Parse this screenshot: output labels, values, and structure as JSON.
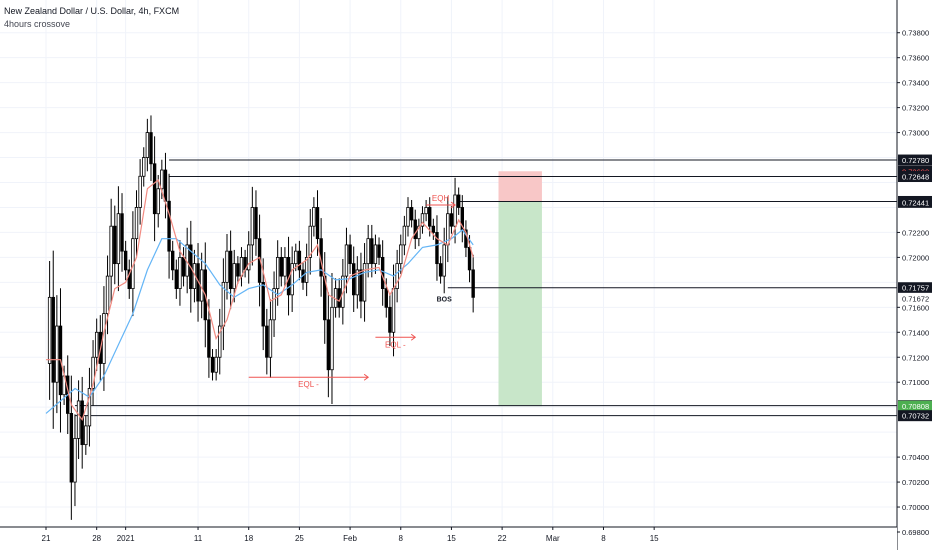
{
  "header": {
    "title": "New Zealand Dollar / U.S. Dollar, 4h, FXCM",
    "subtitle": "4hours crossove"
  },
  "chart_data": {
    "type": "candlestick",
    "ylim": [
      0.698,
      0.7395
    ],
    "y_ticks": [
      "0.73800",
      "0.73600",
      "0.73400",
      "0.73200",
      "0.73000",
      "0.72200",
      "0.72000",
      "0.71600",
      "0.71400",
      "0.71200",
      "0.71000",
      "0.70400",
      "0.70200",
      "0.70000",
      "0.69800"
    ],
    "x_ticks": [
      {
        "label": "21",
        "day": 0
      },
      {
        "label": "28",
        "day": 7
      },
      {
        "label": "2021",
        "day": 11
      },
      {
        "label": "11",
        "day": 21
      },
      {
        "label": "18",
        "day": 28
      },
      {
        "label": "25",
        "day": 35
      },
      {
        "label": "Feb",
        "day": 42
      },
      {
        "label": "8",
        "day": 49
      },
      {
        "label": "15",
        "day": 56
      },
      {
        "label": "22",
        "day": 63
      },
      {
        "label": "Mar",
        "day": 70
      },
      {
        "label": "8",
        "day": 77
      },
      {
        "label": "15",
        "day": 84
      }
    ],
    "series_close": [
      {
        "day": 0,
        "price": 0.7115
      },
      {
        "day": 0.5,
        "price": 0.7168
      },
      {
        "day": 1,
        "price": 0.71
      },
      {
        "day": 1.5,
        "price": 0.7145
      },
      {
        "day": 2,
        "price": 0.709
      },
      {
        "day": 2.5,
        "price": 0.7105
      },
      {
        "day": 3,
        "price": 0.7075
      },
      {
        "day": 3.5,
        "price": 0.702
      },
      {
        "day": 4,
        "price": 0.7055
      },
      {
        "day": 4.5,
        "price": 0.7085
      },
      {
        "day": 5,
        "price": 0.705
      },
      {
        "day": 5.5,
        "price": 0.7065
      },
      {
        "day": 6,
        "price": 0.7095
      },
      {
        "day": 6.5,
        "price": 0.712
      },
      {
        "day": 7,
        "price": 0.714
      },
      {
        "day": 7.5,
        "price": 0.7115
      },
      {
        "day": 8,
        "price": 0.7155
      },
      {
        "day": 8.5,
        "price": 0.7185
      },
      {
        "day": 9,
        "price": 0.7225
      },
      {
        "day": 9.5,
        "price": 0.7195
      },
      {
        "day": 10,
        "price": 0.7235
      },
      {
        "day": 10.5,
        "price": 0.7205
      },
      {
        "day": 11,
        "price": 0.719
      },
      {
        "day": 11.5,
        "price": 0.7175
      },
      {
        "day": 12,
        "price": 0.7215
      },
      {
        "day": 12.5,
        "price": 0.724
      },
      {
        "day": 13,
        "price": 0.7265
      },
      {
        "day": 13.5,
        "price": 0.728
      },
      {
        "day": 14,
        "price": 0.73
      },
      {
        "day": 14.5,
        "price": 0.7275
      },
      {
        "day": 15,
        "price": 0.7235
      },
      {
        "day": 15.5,
        "price": 0.7255
      },
      {
        "day": 16,
        "price": 0.727
      },
      {
        "day": 16.5,
        "price": 0.7245
      },
      {
        "day": 17,
        "price": 0.7205
      },
      {
        "day": 17.5,
        "price": 0.719
      },
      {
        "day": 18,
        "price": 0.7175
      },
      {
        "day": 18.5,
        "price": 0.72
      },
      {
        "day": 19,
        "price": 0.7185
      },
      {
        "day": 19.5,
        "price": 0.721
      },
      {
        "day": 20,
        "price": 0.7175
      },
      {
        "day": 20.5,
        "price": 0.7195
      },
      {
        "day": 21,
        "price": 0.7165
      },
      {
        "day": 21.5,
        "price": 0.719
      },
      {
        "day": 22,
        "price": 0.715
      },
      {
        "day": 22.5,
        "price": 0.712
      },
      {
        "day": 23,
        "price": 0.7108
      },
      {
        "day": 23.5,
        "price": 0.712
      },
      {
        "day": 24,
        "price": 0.7145
      },
      {
        "day": 24.5,
        "price": 0.718
      },
      {
        "day": 25,
        "price": 0.7205
      },
      {
        "day": 25.5,
        "price": 0.7175
      },
      {
        "day": 26,
        "price": 0.7195
      },
      {
        "day": 26.5,
        "price": 0.7185
      },
      {
        "day": 27,
        "price": 0.72
      },
      {
        "day": 27.5,
        "price": 0.719
      },
      {
        "day": 28,
        "price": 0.721
      },
      {
        "day": 28.5,
        "price": 0.724
      },
      {
        "day": 29,
        "price": 0.7215
      },
      {
        "day": 29.5,
        "price": 0.718
      },
      {
        "day": 30,
        "price": 0.7145
      },
      {
        "day": 30.5,
        "price": 0.712
      },
      {
        "day": 31,
        "price": 0.715
      },
      {
        "day": 31.5,
        "price": 0.7175
      },
      {
        "day": 32,
        "price": 0.72
      },
      {
        "day": 32.5,
        "price": 0.7185
      },
      {
        "day": 33,
        "price": 0.72
      },
      {
        "day": 33.5,
        "price": 0.717
      },
      {
        "day": 34,
        "price": 0.7195
      },
      {
        "day": 34.5,
        "price": 0.7205
      },
      {
        "day": 35,
        "price": 0.719
      },
      {
        "day": 35.5,
        "price": 0.718
      },
      {
        "day": 36,
        "price": 0.72
      },
      {
        "day": 36.5,
        "price": 0.7225
      },
      {
        "day": 37,
        "price": 0.724
      },
      {
        "day": 37.5,
        "price": 0.7215
      },
      {
        "day": 38,
        "price": 0.7185
      },
      {
        "day": 38.5,
        "price": 0.715
      },
      {
        "day": 39,
        "price": 0.711
      },
      {
        "day": 39.5,
        "price": 0.716
      },
      {
        "day": 40,
        "price": 0.7175
      },
      {
        "day": 40.5,
        "price": 0.716
      },
      {
        "day": 41,
        "price": 0.7185
      },
      {
        "day": 41.5,
        "price": 0.721
      },
      {
        "day": 42,
        "price": 0.7195
      },
      {
        "day": 42.5,
        "price": 0.717
      },
      {
        "day": 43,
        "price": 0.719
      },
      {
        "day": 43.5,
        "price": 0.7165
      },
      {
        "day": 44,
        "price": 0.7195
      },
      {
        "day": 44.5,
        "price": 0.7215
      },
      {
        "day": 45,
        "price": 0.7195
      },
      {
        "day": 45.5,
        "price": 0.721
      },
      {
        "day": 46,
        "price": 0.72
      },
      {
        "day": 46.5,
        "price": 0.7175
      },
      {
        "day": 47,
        "price": 0.716
      },
      {
        "day": 47.5,
        "price": 0.714
      },
      {
        "day": 48,
        "price": 0.7175
      },
      {
        "day": 48.5,
        "price": 0.7195
      },
      {
        "day": 49,
        "price": 0.721
      },
      {
        "day": 49.5,
        "price": 0.7225
      },
      {
        "day": 50,
        "price": 0.724
      },
      {
        "day": 50.5,
        "price": 0.723
      },
      {
        "day": 51,
        "price": 0.7215
      },
      {
        "day": 51.5,
        "price": 0.7225
      },
      {
        "day": 52,
        "price": 0.7235
      },
      {
        "day": 52.5,
        "price": 0.724
      },
      {
        "day": 53,
        "price": 0.7225
      },
      {
        "day": 53.5,
        "price": 0.722
      },
      {
        "day": 54,
        "price": 0.7195
      },
      {
        "day": 54.5,
        "price": 0.7185
      },
      {
        "day": 55,
        "price": 0.721
      },
      {
        "day": 55.5,
        "price": 0.7235
      },
      {
        "day": 56,
        "price": 0.7225
      },
      {
        "day": 56.5,
        "price": 0.725
      },
      {
        "day": 57,
        "price": 0.724
      },
      {
        "day": 57.5,
        "price": 0.7222
      },
      {
        "day": 58,
        "price": 0.7208
      },
      {
        "day": 58.5,
        "price": 0.719
      },
      {
        "day": 59,
        "price": 0.7168
      }
    ],
    "series_ema_fast": [
      {
        "day": 0,
        "price": 0.7118
      },
      {
        "day": 2,
        "price": 0.7118
      },
      {
        "day": 3.5,
        "price": 0.7082
      },
      {
        "day": 5,
        "price": 0.707
      },
      {
        "day": 6.5,
        "price": 0.7098
      },
      {
        "day": 8,
        "price": 0.714
      },
      {
        "day": 9.5,
        "price": 0.7175
      },
      {
        "day": 11,
        "price": 0.718
      },
      {
        "day": 12.5,
        "price": 0.72
      },
      {
        "day": 14,
        "price": 0.7255
      },
      {
        "day": 15.5,
        "price": 0.7262
      },
      {
        "day": 17,
        "price": 0.7235
      },
      {
        "day": 18.5,
        "price": 0.7205
      },
      {
        "day": 20,
        "price": 0.7192
      },
      {
        "day": 22,
        "price": 0.717
      },
      {
        "day": 23.5,
        "price": 0.7135
      },
      {
        "day": 25,
        "price": 0.715
      },
      {
        "day": 26.5,
        "price": 0.718
      },
      {
        "day": 28,
        "price": 0.7195
      },
      {
        "day": 29.5,
        "price": 0.72
      },
      {
        "day": 31,
        "price": 0.7165
      },
      {
        "day": 32.5,
        "price": 0.717
      },
      {
        "day": 34,
        "price": 0.719
      },
      {
        "day": 36,
        "price": 0.7198
      },
      {
        "day": 37.5,
        "price": 0.721
      },
      {
        "day": 39,
        "price": 0.717
      },
      {
        "day": 40.5,
        "price": 0.7165
      },
      {
        "day": 42,
        "price": 0.7185
      },
      {
        "day": 44,
        "price": 0.719
      },
      {
        "day": 46,
        "price": 0.7192
      },
      {
        "day": 47.5,
        "price": 0.717
      },
      {
        "day": 49,
        "price": 0.7185
      },
      {
        "day": 50.5,
        "price": 0.7215
      },
      {
        "day": 52,
        "price": 0.7228
      },
      {
        "day": 54,
        "price": 0.7215
      },
      {
        "day": 55.5,
        "price": 0.721
      },
      {
        "day": 57,
        "price": 0.723
      },
      {
        "day": 58,
        "price": 0.722
      },
      {
        "day": 59,
        "price": 0.72
      }
    ],
    "series_ema_slow": [
      {
        "day": 0,
        "price": 0.7075
      },
      {
        "day": 2,
        "price": 0.7085
      },
      {
        "day": 4,
        "price": 0.7095
      },
      {
        "day": 6,
        "price": 0.7088
      },
      {
        "day": 8,
        "price": 0.7105
      },
      {
        "day": 10,
        "price": 0.713
      },
      {
        "day": 12,
        "price": 0.7155
      },
      {
        "day": 14,
        "price": 0.719
      },
      {
        "day": 16,
        "price": 0.7215
      },
      {
        "day": 18,
        "price": 0.7215
      },
      {
        "day": 20,
        "price": 0.7205
      },
      {
        "day": 22,
        "price": 0.7195
      },
      {
        "day": 24,
        "price": 0.7178
      },
      {
        "day": 26,
        "price": 0.7168
      },
      {
        "day": 28,
        "price": 0.7175
      },
      {
        "day": 30,
        "price": 0.7178
      },
      {
        "day": 32,
        "price": 0.717
      },
      {
        "day": 34,
        "price": 0.7178
      },
      {
        "day": 36,
        "price": 0.7188
      },
      {
        "day": 38,
        "price": 0.719
      },
      {
        "day": 40,
        "price": 0.7182
      },
      {
        "day": 42,
        "price": 0.7183
      },
      {
        "day": 44,
        "price": 0.7188
      },
      {
        "day": 46,
        "price": 0.719
      },
      {
        "day": 48,
        "price": 0.7185
      },
      {
        "day": 50,
        "price": 0.7195
      },
      {
        "day": 52,
        "price": 0.7208
      },
      {
        "day": 54,
        "price": 0.721
      },
      {
        "day": 56,
        "price": 0.7215
      },
      {
        "day": 57.5,
        "price": 0.7222
      },
      {
        "day": 59,
        "price": 0.721
      }
    ],
    "price_labels": [
      {
        "price": 0.7278,
        "label": "0.72780",
        "bg": "#131722",
        "fg": "#ffffff"
      },
      {
        "price": 0.7269,
        "label": "0.72690",
        "bg": "#131722",
        "fg": "#ff5252"
      },
      {
        "price": 0.72648,
        "label": "0.72648",
        "bg": "#131722",
        "fg": "#ffffff"
      },
      {
        "price": 0.72448,
        "label": "0.72448",
        "bg": "#131722",
        "fg": "#ffffff"
      },
      {
        "price": 0.72441,
        "label": "0.72441",
        "bg": "#131722",
        "fg": "#ffffff"
      },
      {
        "price": 0.71757,
        "label": "0.71757",
        "bg": "#131722",
        "fg": "#ffffff"
      },
      {
        "price": 0.71672,
        "label": "0.71672",
        "bg": "#ffffff",
        "fg": "#131722"
      },
      {
        "price": 0.70812,
        "label": "0.70812",
        "bg": "#131722",
        "fg": "#ffffff"
      },
      {
        "price": 0.70808,
        "label": "0.70808",
        "bg": "#4caf50",
        "fg": "#ffffff"
      },
      {
        "price": 0.70732,
        "label": "0.70732",
        "bg": "#131722",
        "fg": "#ffffff"
      }
    ],
    "levels": [
      {
        "price": 0.7278,
        "from_day": 17
      },
      {
        "price": 0.72648,
        "from_day": 17
      },
      {
        "price": 0.72448,
        "from_day": 56.8
      },
      {
        "price": 0.71757,
        "from_day": 55.5
      },
      {
        "price": 0.70812,
        "from_day": 4
      },
      {
        "price": 0.70732,
        "from_day": 4
      }
    ],
    "annotations": [
      {
        "text": "EQH",
        "color": "#ef5350",
        "kind": "arrow",
        "day_from": 52.5,
        "day_to": 56.5,
        "price": 0.7242
      },
      {
        "text": "EQL -",
        "color": "#ef5350",
        "kind": "arrow",
        "day_from": 28,
        "day_to": 44.5,
        "price": 0.7104
      },
      {
        "text": "EQL -",
        "color": "#ef5350",
        "kind": "arrow",
        "day_from": 45.5,
        "day_to": 51,
        "price": 0.7136
      },
      {
        "text": "BOS",
        "color": "#131722",
        "kind": "label",
        "day": 55,
        "price": 0.7168
      }
    ],
    "position": {
      "entry": 0.72448,
      "stop": 0.7269,
      "target": 0.70808,
      "day_from": 62.5,
      "day_to": 68.5
    },
    "colors": {
      "candle": "#000000",
      "ema_fast": "#f28b82",
      "ema_slow": "#64b5f6",
      "stop_zone": "#f8c7c7",
      "target_zone": "#c8e6c9"
    }
  }
}
